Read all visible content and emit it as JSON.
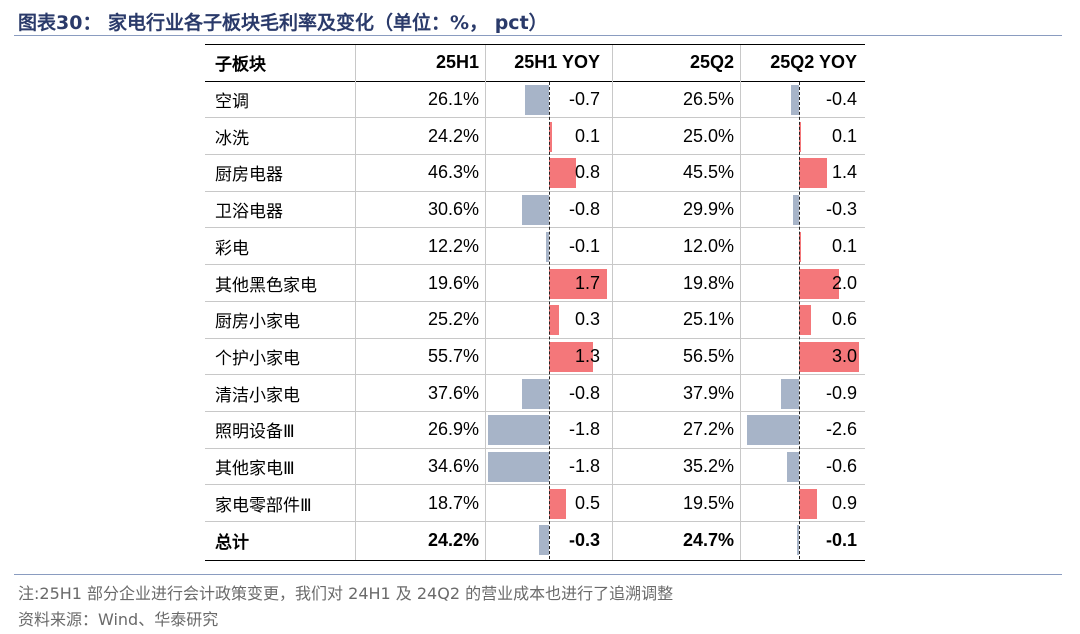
{
  "title": "图表30： 家电行业各子板块毛利率及变化（单位：%， pct）",
  "table": {
    "headers": [
      "子板块",
      "25H1",
      "25H1 YOY",
      "25Q2",
      "25Q2 YOY"
    ],
    "rows": [
      {
        "name": "空调",
        "h1": "26.1%",
        "h1_yoy": -0.7,
        "h1_yoy_label": "-0.7",
        "q2": "26.5%",
        "q2_yoy": -0.4,
        "q2_yoy_label": "-0.4"
      },
      {
        "name": "冰洗",
        "h1": "24.2%",
        "h1_yoy": 0.1,
        "h1_yoy_label": "0.1",
        "q2": "25.0%",
        "q2_yoy": 0.1,
        "q2_yoy_label": "0.1"
      },
      {
        "name": "厨房电器",
        "h1": "46.3%",
        "h1_yoy": 0.8,
        "h1_yoy_label": "0.8",
        "q2": "45.5%",
        "q2_yoy": 1.4,
        "q2_yoy_label": "1.4"
      },
      {
        "name": "卫浴电器",
        "h1": "30.6%",
        "h1_yoy": -0.8,
        "h1_yoy_label": "-0.8",
        "q2": "29.9%",
        "q2_yoy": -0.3,
        "q2_yoy_label": "-0.3"
      },
      {
        "name": "彩电",
        "h1": "12.2%",
        "h1_yoy": -0.1,
        "h1_yoy_label": "-0.1",
        "q2": "12.0%",
        "q2_yoy": 0.1,
        "q2_yoy_label": "0.1"
      },
      {
        "name": "其他黑色家电",
        "h1": "19.6%",
        "h1_yoy": 1.7,
        "h1_yoy_label": "1.7",
        "q2": "19.8%",
        "q2_yoy": 2.0,
        "q2_yoy_label": "2.0"
      },
      {
        "name": "厨房小家电",
        "h1": "25.2%",
        "h1_yoy": 0.3,
        "h1_yoy_label": "0.3",
        "q2": "25.1%",
        "q2_yoy": 0.6,
        "q2_yoy_label": "0.6"
      },
      {
        "name": "个护小家电",
        "h1": "55.7%",
        "h1_yoy": 1.3,
        "h1_yoy_label": "1.3",
        "q2": "56.5%",
        "q2_yoy": 3.0,
        "q2_yoy_label": "3.0"
      },
      {
        "name": "清洁小家电",
        "h1": "37.6%",
        "h1_yoy": -0.8,
        "h1_yoy_label": "-0.8",
        "q2": "37.9%",
        "q2_yoy": -0.9,
        "q2_yoy_label": "-0.9"
      },
      {
        "name": "照明设备Ⅲ",
        "h1": "26.9%",
        "h1_yoy": -1.8,
        "h1_yoy_label": "-1.8",
        "q2": "27.2%",
        "q2_yoy": -2.6,
        "q2_yoy_label": "-2.6"
      },
      {
        "name": "其他家电Ⅲ",
        "h1": "34.6%",
        "h1_yoy": -1.8,
        "h1_yoy_label": "-1.8",
        "q2": "35.2%",
        "q2_yoy": -0.6,
        "q2_yoy_label": "-0.6"
      },
      {
        "name": "家电零部件Ⅲ",
        "h1": "18.7%",
        "h1_yoy": 0.5,
        "h1_yoy_label": "0.5",
        "q2": "19.5%",
        "q2_yoy": 0.9,
        "q2_yoy_label": "0.9"
      }
    ],
    "total": {
      "name": "总计",
      "h1": "24.2%",
      "h1_yoy": -0.3,
      "h1_yoy_label": "-0.3",
      "q2": "24.7%",
      "q2_yoy": -0.1,
      "q2_yoy_label": "-0.1"
    }
  },
  "chart_data": {
    "type": "table",
    "columns": [
      "子板块",
      "25H1",
      "25H1 YOY",
      "25Q2",
      "25Q2 YOY"
    ],
    "rows": [
      [
        "空调",
        26.1,
        -0.7,
        26.5,
        -0.4
      ],
      [
        "冰洗",
        24.2,
        0.1,
        25.0,
        0.1
      ],
      [
        "厨房电器",
        46.3,
        0.8,
        45.5,
        1.4
      ],
      [
        "卫浴电器",
        30.6,
        -0.8,
        29.9,
        -0.3
      ],
      [
        "彩电",
        12.2,
        -0.1,
        12.0,
        0.1
      ],
      [
        "其他黑色家电",
        19.6,
        1.7,
        19.8,
        2.0
      ],
      [
        "厨房小家电",
        25.2,
        0.3,
        25.1,
        0.6
      ],
      [
        "个护小家电",
        55.7,
        1.3,
        56.5,
        3.0
      ],
      [
        "清洁小家电",
        37.6,
        -0.8,
        37.9,
        -0.9
      ],
      [
        "照明设备Ⅲ",
        26.9,
        -1.8,
        27.2,
        -2.6
      ],
      [
        "其他家电Ⅲ",
        34.6,
        -1.8,
        35.2,
        -0.6
      ],
      [
        "家电零部件Ⅲ",
        18.7,
        0.5,
        19.5,
        0.9
      ],
      [
        "总计",
        24.2,
        -0.3,
        24.7,
        -0.1
      ]
    ],
    "colors": {
      "negative": "#a7b4c8",
      "positive": "#f4777a",
      "title": "#2a3a6a"
    }
  },
  "footnote": "注:25H1 部分企业进行会计政策变更，我们对 24H1 及 24Q2 的营业成本也进行了追溯调整",
  "source": "资料来源：Wind、华泰研究"
}
